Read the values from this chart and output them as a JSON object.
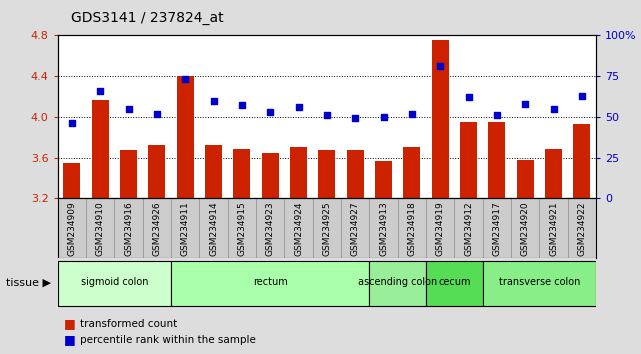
{
  "title": "GDS3141 / 237824_at",
  "samples": [
    "GSM234909",
    "GSM234910",
    "GSM234916",
    "GSM234926",
    "GSM234911",
    "GSM234914",
    "GSM234915",
    "GSM234923",
    "GSM234924",
    "GSM234925",
    "GSM234927",
    "GSM234913",
    "GSM234918",
    "GSM234919",
    "GSM234912",
    "GSM234917",
    "GSM234920",
    "GSM234921",
    "GSM234922"
  ],
  "bar_values": [
    3.55,
    4.17,
    3.67,
    3.72,
    4.4,
    3.72,
    3.68,
    3.64,
    3.7,
    3.67,
    3.67,
    3.57,
    3.7,
    4.75,
    3.95,
    3.95,
    3.58,
    3.68,
    3.93
  ],
  "dot_values": [
    46,
    66,
    55,
    52,
    73,
    60,
    57,
    53,
    56,
    51,
    49,
    50,
    52,
    81,
    62,
    51,
    58,
    55,
    63
  ],
  "ylim_left": [
    3.2,
    4.8
  ],
  "ylim_right": [
    0,
    100
  ],
  "yticks_left": [
    3.2,
    3.6,
    4.0,
    4.4,
    4.8
  ],
  "yticks_right": [
    0,
    25,
    50,
    75,
    100
  ],
  "ytick_labels_right": [
    "0",
    "25",
    "50",
    "75",
    "100%"
  ],
  "bar_color": "#cc2200",
  "dot_color": "#0000cc",
  "tissue_groups": [
    {
      "label": "sigmoid colon",
      "start": 0,
      "end": 4,
      "color": "#ccffcc"
    },
    {
      "label": "rectum",
      "start": 4,
      "end": 11,
      "color": "#aaffaa"
    },
    {
      "label": "ascending colon",
      "start": 11,
      "end": 13,
      "color": "#99ee99"
    },
    {
      "label": "cecum",
      "start": 13,
      "end": 15,
      "color": "#55dd55"
    },
    {
      "label": "transverse colon",
      "start": 15,
      "end": 19,
      "color": "#88ee88"
    }
  ],
  "tissue_label": "tissue",
  "legend_bar_label": "transformed count",
  "legend_dot_label": "percentile rank within the sample",
  "bg_color": "#dddddd",
  "plot_bg": "#ffffff",
  "xtick_bg": "#cccccc"
}
